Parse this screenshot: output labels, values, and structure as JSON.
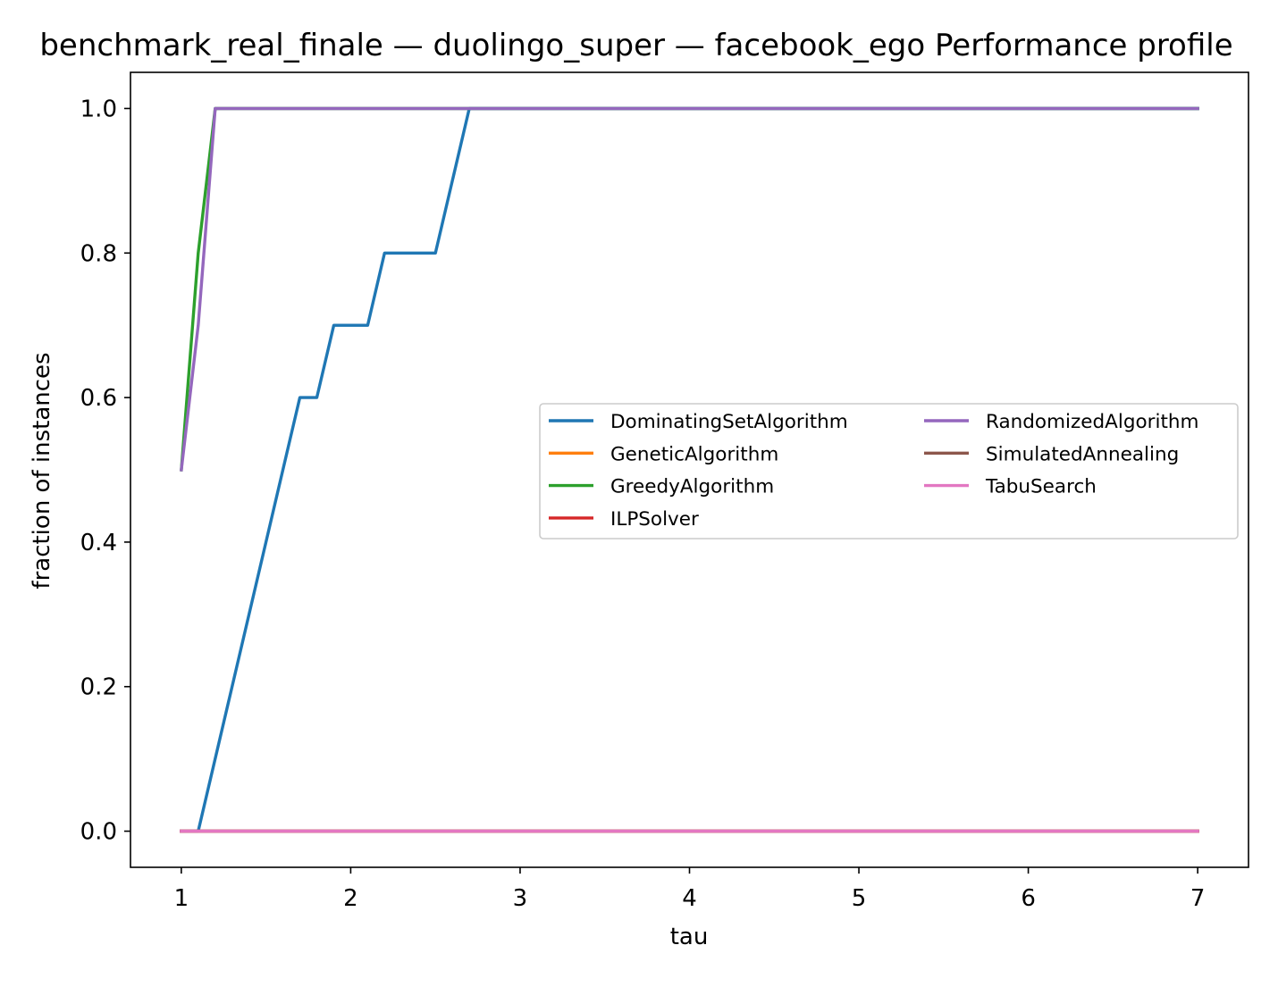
{
  "chart_data": {
    "type": "line",
    "title": "benchmark_real_finale — duolingo_super — facebook_ego Performance profile",
    "xlabel": "tau",
    "ylabel": "fraction of instances",
    "xlim": [
      0.7,
      7.3
    ],
    "ylim": [
      -0.05,
      1.05
    ],
    "xticks": [
      1,
      2,
      3,
      4,
      5,
      6,
      7
    ],
    "xtick_labels": [
      "1",
      "2",
      "3",
      "4",
      "5",
      "6",
      "7"
    ],
    "yticks": [
      0.0,
      0.2,
      0.4,
      0.6,
      0.8,
      1.0
    ],
    "ytick_labels": [
      "0.0",
      "0.2",
      "0.4",
      "0.6",
      "0.8",
      "1.0"
    ],
    "grid": false,
    "legend": {
      "placement": "center-right",
      "columns": 2
    },
    "series": [
      {
        "name": "DominatingSetAlgorithm",
        "color": "#1f77b4",
        "x": [
          1.0,
          1.1,
          1.7,
          1.8,
          1.9,
          2.0,
          2.1,
          2.2,
          2.3,
          2.4,
          2.5,
          2.7,
          7.0
        ],
        "y": [
          0.0,
          0.0,
          0.6,
          0.6,
          0.7,
          0.7,
          0.7,
          0.8,
          0.8,
          0.8,
          0.8,
          1.0,
          1.0
        ]
      },
      {
        "name": "GeneticAlgorithm",
        "color": "#ff7f0e",
        "x": [
          1.0,
          7.0
        ],
        "y": [
          0.0,
          0.0
        ]
      },
      {
        "name": "GreedyAlgorithm",
        "color": "#2ca02c",
        "x": [
          1.0,
          1.1,
          1.2,
          7.0
        ],
        "y": [
          0.5,
          0.8,
          1.0,
          1.0
        ]
      },
      {
        "name": "ILPSolver",
        "color": "#d62728",
        "x": [
          1.0,
          7.0
        ],
        "y": [
          0.0,
          0.0
        ]
      },
      {
        "name": "RandomizedAlgorithm",
        "color": "#9467bd",
        "x": [
          1.0,
          1.1,
          1.2,
          7.0
        ],
        "y": [
          0.5,
          0.7,
          1.0,
          1.0
        ]
      },
      {
        "name": "SimulatedAnnealing",
        "color": "#8c564b",
        "x": [
          1.0,
          7.0
        ],
        "y": [
          0.0,
          0.0
        ]
      },
      {
        "name": "TabuSearch",
        "color": "#e377c2",
        "x": [
          1.0,
          7.0
        ],
        "y": [
          0.0,
          0.0
        ]
      }
    ]
  }
}
